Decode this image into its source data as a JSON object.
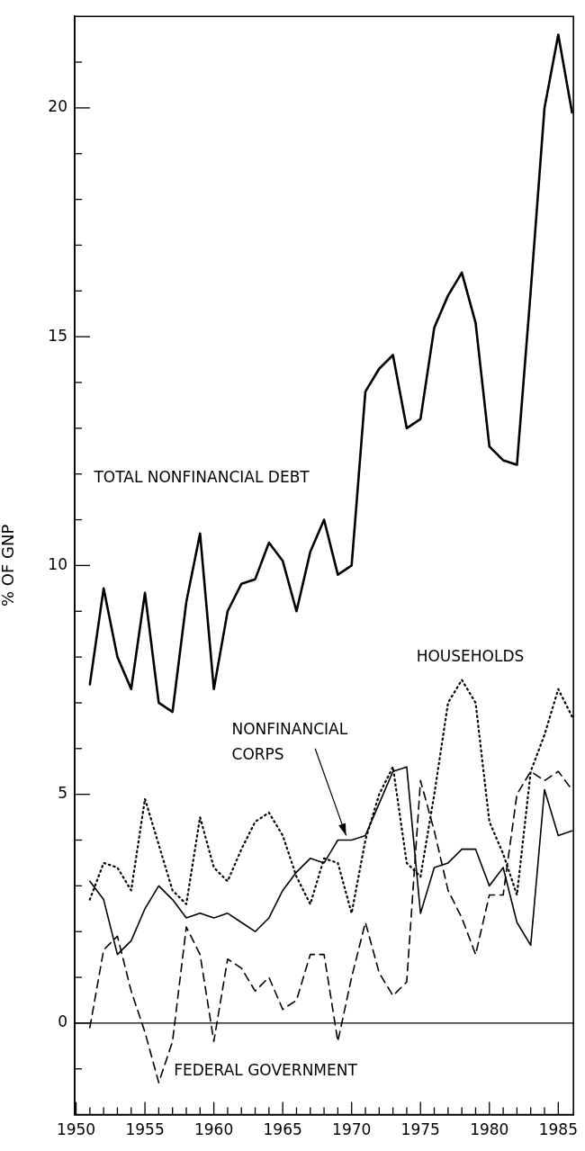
{
  "chart_data": {
    "type": "line",
    "ylabel": "% OF GNP",
    "marker": "none",
    "x": [
      1951,
      1952,
      1953,
      1954,
      1955,
      1956,
      1957,
      1958,
      1959,
      1960,
      1961,
      1962,
      1963,
      1964,
      1965,
      1966,
      1967,
      1968,
      1969,
      1970,
      1971,
      1972,
      1973,
      1974,
      1975,
      1976,
      1977,
      1978,
      1979,
      1980,
      1981,
      1982,
      1983,
      1984,
      1985,
      1986
    ],
    "xlim": [
      1949.9,
      1986.1
    ],
    "xticks": [
      1950,
      {
        "value": 1951,
        "label": null
      },
      {
        "value": 1952,
        "label": null
      },
      {
        "value": 1953,
        "label": null
      },
      {
        "value": 1954,
        "label": null
      },
      1955,
      {
        "value": 1956,
        "label": null
      },
      {
        "value": 1957,
        "label": null
      },
      {
        "value": 1958,
        "label": null
      },
      {
        "value": 1959,
        "label": null
      },
      1960,
      {
        "value": 1961,
        "label": null
      },
      {
        "value": 1962,
        "label": null
      },
      {
        "value": 1963,
        "label": null
      },
      {
        "value": 1964,
        "label": null
      },
      1965,
      {
        "value": 1966,
        "label": null
      },
      {
        "value": 1967,
        "label": null
      },
      {
        "value": 1968,
        "label": null
      },
      {
        "value": 1969,
        "label": null
      },
      1970,
      {
        "value": 1971,
        "label": null
      },
      {
        "value": 1972,
        "label": null
      },
      {
        "value": 1973,
        "label": null
      },
      {
        "value": 1974,
        "label": null
      },
      1975,
      {
        "value": 1976,
        "label": null
      },
      {
        "value": 1977,
        "label": null
      },
      {
        "value": 1978,
        "label": null
      },
      {
        "value": 1979,
        "label": null
      },
      1980,
      {
        "value": 1981,
        "label": null
      },
      {
        "value": 1982,
        "label": null
      },
      {
        "value": 1983,
        "label": null
      },
      {
        "value": 1984,
        "label": null
      },
      1985
    ],
    "ylim": [
      -2,
      22
    ],
    "yticks": [
      {
        "value": -1,
        "label": null
      },
      0,
      {
        "value": 1,
        "label": null
      },
      {
        "value": 2,
        "label": null
      },
      {
        "value": 3,
        "label": null
      },
      {
        "value": 4,
        "label": null
      },
      5,
      {
        "value": 6,
        "label": null
      },
      {
        "value": 7,
        "label": null
      },
      {
        "value": 8,
        "label": null
      },
      {
        "value": 9,
        "label": null
      },
      10,
      {
        "value": 11,
        "label": null
      },
      {
        "value": 12,
        "label": null
      },
      {
        "value": 13,
        "label": null
      },
      {
        "value": 14,
        "label": null
      },
      15,
      {
        "value": 16,
        "label": null
      },
      {
        "value": 17,
        "label": null
      },
      {
        "value": 18,
        "label": null
      },
      {
        "value": 19,
        "label": null
      },
      20,
      {
        "value": 21,
        "label": null
      }
    ],
    "ref_lines": [
      {
        "axis": "y",
        "value": 0,
        "color": "#000000",
        "line_style": "solid"
      }
    ],
    "series": [
      {
        "name": "TOTAL NONFINANCIAL DEBT",
        "color": "#000000",
        "line_style": "solid",
        "values": [
          7.4,
          9.5,
          8.0,
          7.3,
          9.4,
          7.0,
          6.8,
          9.2,
          10.7,
          7.3,
          9.0,
          9.6,
          9.7,
          10.5,
          10.1,
          9.0,
          10.3,
          11.0,
          9.8,
          10.0,
          13.8,
          14.3,
          14.6,
          13.0,
          13.2,
          15.2,
          15.9,
          16.4,
          15.3,
          12.6,
          12.3,
          12.2,
          16.0,
          20.0,
          21.6,
          19.9
        ]
      },
      {
        "name": "HOUSEHOLDS",
        "color": "#000000",
        "line_style": "dotted",
        "values": [
          2.7,
          3.5,
          3.4,
          2.9,
          4.9,
          3.9,
          2.9,
          2.6,
          4.5,
          3.4,
          3.1,
          3.8,
          4.4,
          4.6,
          4.1,
          3.2,
          2.6,
          3.6,
          3.5,
          2.4,
          4.0,
          5.0,
          5.6,
          3.5,
          3.2,
          5.0,
          7.0,
          7.5,
          7.0,
          4.4,
          3.7,
          2.8,
          5.5,
          6.3,
          7.3,
          6.7
        ]
      },
      {
        "name": "NONFINANCIAL CORPS",
        "color": "#000000",
        "line_style": "solid",
        "values": [
          3.1,
          2.7,
          1.5,
          1.8,
          2.5,
          3.0,
          2.7,
          2.3,
          2.4,
          2.3,
          2.4,
          2.2,
          2.0,
          2.3,
          2.9,
          3.3,
          3.6,
          3.5,
          4.0,
          4.0,
          4.1,
          4.8,
          5.5,
          5.6,
          2.4,
          3.4,
          3.5,
          3.8,
          3.8,
          3.0,
          3.4,
          2.2,
          1.7,
          5.1,
          4.1,
          4.2
        ]
      },
      {
        "name": "FEDERAL GOVERNMENT",
        "color": "#000000",
        "line_style": "dashed",
        "values": [
          -0.1,
          1.6,
          1.9,
          0.7,
          -0.2,
          -1.3,
          -0.4,
          2.1,
          1.5,
          -0.4,
          1.4,
          1.2,
          0.7,
          1.0,
          0.3,
          0.5,
          1.5,
          1.5,
          -0.4,
          1.0,
          2.2,
          1.1,
          0.6,
          0.9,
          5.3,
          4.2,
          2.9,
          2.3,
          1.5,
          2.8,
          2.8,
          5.0,
          5.5,
          5.3,
          5.5,
          5.1
        ]
      }
    ]
  }
}
